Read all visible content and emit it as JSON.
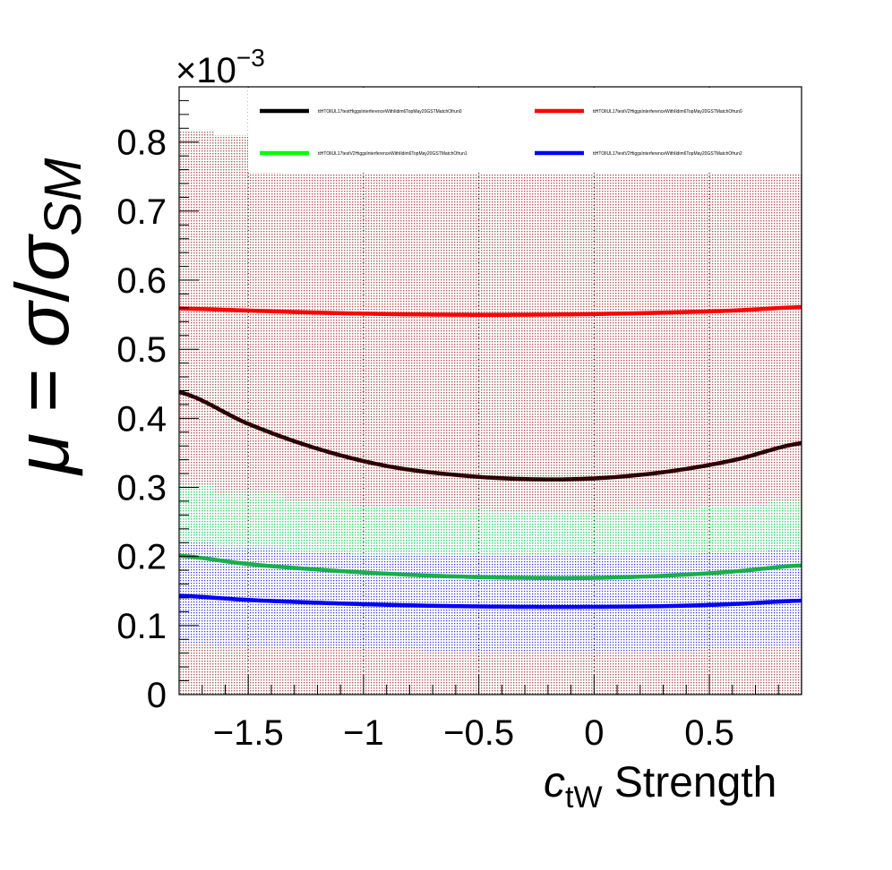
{
  "chart_data": {
    "type": "line",
    "title": "",
    "xlabel": {
      "main": "c",
      "sub": "tW",
      "rest": " Strength"
    },
    "ylabel": {
      "mu": "μ",
      "eq": " = ",
      "sigma": "σ",
      "slash": "/",
      "sigma2": "σ",
      "sub": "SM"
    },
    "y_exponent": {
      "base": "×10",
      "exp": "−3"
    },
    "xlim": [
      -1.8,
      0.9
    ],
    "ylim": [
      0,
      0.00088
    ],
    "x_ticks": [
      -1.5,
      -1,
      -0.5,
      0,
      0.5
    ],
    "x_tick_labels": [
      "−1.5",
      "−1",
      "−0.5",
      "0",
      "0.5"
    ],
    "y_ticks": [
      0,
      0.0001,
      0.0002,
      0.0003,
      0.0004,
      0.0005,
      0.0006,
      0.0007,
      0.0008
    ],
    "y_tick_labels": [
      "0",
      "0.1",
      "0.2",
      "0.3",
      "0.4",
      "0.5",
      "0.6",
      "0.7",
      "0.8"
    ],
    "grid": "dotted vertical at major x ticks",
    "legend_position": "top-right",
    "x": [
      -1.8,
      -1.5,
      -1.2,
      -0.9,
      -0.6,
      -0.3,
      0,
      0.3,
      0.6,
      0.9
    ],
    "series": [
      {
        "name": "ttHTOllUL17testHiggsInterferenceWithIldim6TopMay20GSTMatchOfrun0",
        "color": "#000000",
        "band_color": "#ff8080",
        "values": [
          0.000438,
          0.000392,
          0.000356,
          0.000331,
          0.000318,
          0.000312,
          0.000313,
          0.000322,
          0.000339,
          0.000364
        ],
        "band": [
          [
            0.0,
            0.000815
          ],
          [
            0.0,
            0.00081
          ],
          [
            0.0,
            0.000755
          ],
          [
            0.0,
            0.000755
          ],
          [
            0.0,
            0.000755
          ],
          [
            0.0,
            0.000755
          ],
          [
            0.0,
            0.000755
          ],
          [
            0.0,
            0.000755
          ],
          [
            0.0,
            0.000755
          ],
          [
            0.0,
            0.000755
          ]
        ]
      },
      {
        "name": "ttHTOllUL17testV2HiggsInterferenceWithIldim6TopMay20GSTMatchOfrun0",
        "color": "#ff0000",
        "band_color": "#e08080",
        "values": [
          0.000559,
          0.000556,
          0.000553,
          0.000551,
          0.00055,
          0.00055,
          0.000551,
          0.000553,
          0.000556,
          0.000561
        ],
        "band": [
          [
            0.0,
            0.000815
          ],
          [
            0.0,
            0.00081
          ],
          [
            0.0,
            0.000755
          ],
          [
            0.0,
            0.000755
          ],
          [
            0.0,
            0.000755
          ],
          [
            0.0,
            0.000755
          ],
          [
            0.0,
            0.000755
          ],
          [
            0.0,
            0.000755
          ],
          [
            0.0,
            0.000755
          ],
          [
            0.0,
            0.000755
          ]
        ]
      },
      {
        "name": "ttHTOllUL17testV2HiggsInterferenceWithIldim6TopMay20GSTMatchOfrun1",
        "color": "#00ff00",
        "band_color": "#80e8a0",
        "values": [
          0.000201,
          0.000189,
          0.000181,
          0.000175,
          0.000171,
          0.000169,
          0.000169,
          0.000172,
          0.000178,
          0.000187
        ],
        "band": [
          [
            0.000195,
            0.000302
          ],
          [
            0.000184,
            0.00029
          ],
          [
            0.000176,
            0.00028
          ],
          [
            0.00017,
            0.000272
          ],
          [
            0.000166,
            0.000268
          ],
          [
            0.000164,
            0.000266
          ],
          [
            0.000164,
            0.000266
          ],
          [
            0.000167,
            0.000268
          ],
          [
            0.000172,
            0.000274
          ],
          [
            0.00018,
            0.00028
          ]
        ]
      },
      {
        "name": "ttHTOllUL17testV2HiggsInterferenceWithIldim6TopMay20GSTMatchOfrun2",
        "color": "#0000ff",
        "band_color": "#8080ff",
        "values": [
          0.000143,
          0.000137,
          0.000133,
          0.00013,
          0.000128,
          0.000127,
          0.000127,
          0.000128,
          0.000131,
          0.000136
        ],
        "band": [
          [
            7.3e-05,
            0.00022
          ],
          [
            7e-05,
            0.000212
          ],
          [
            6.7e-05,
            0.000206
          ],
          [
            6.5e-05,
            0.000203
          ],
          [
            6.3e-05,
            0.000201
          ],
          [
            6.2e-05,
            0.000201
          ],
          [
            6.2e-05,
            0.000201
          ],
          [
            6.3e-05,
            0.000203
          ],
          [
            6.5e-05,
            0.000205
          ],
          [
            7e-05,
            0.00021
          ]
        ]
      }
    ]
  }
}
